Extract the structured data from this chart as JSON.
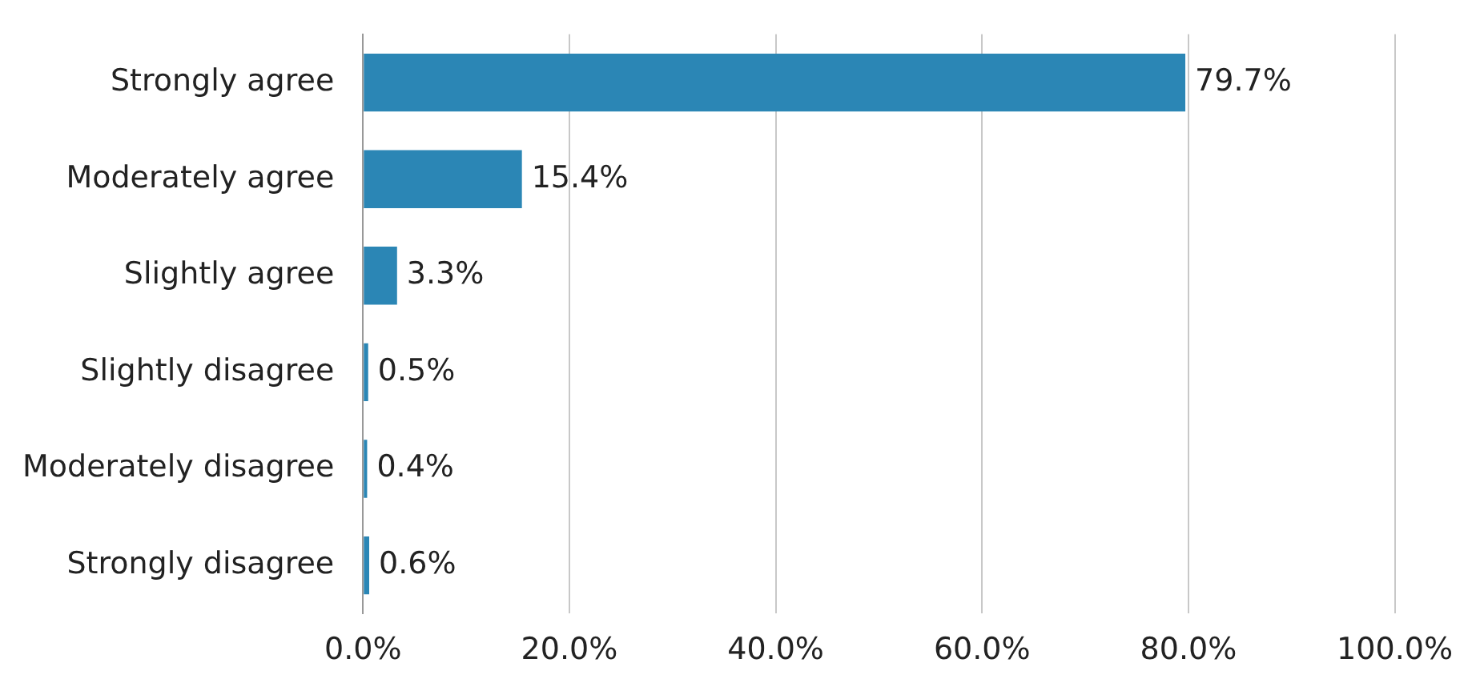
{
  "chart_data": {
    "type": "bar",
    "orientation": "horizontal",
    "categories": [
      "Strongly agree",
      "Moderately agree",
      "Slightly agree",
      "Slightly disagree",
      "Moderately disagree",
      "Strongly disagree"
    ],
    "values": [
      79.7,
      15.4,
      3.3,
      0.5,
      0.4,
      0.6
    ],
    "value_labels": [
      "79.7%",
      "15.4%",
      "3.3%",
      "0.5%",
      "0.4%",
      "0.6%"
    ],
    "color": "#2b86b5",
    "xlim": [
      0,
      100
    ],
    "xticks": [
      {
        "value": 0,
        "label": "0.0%"
      },
      {
        "value": 20,
        "label": "20.0%"
      },
      {
        "value": 40,
        "label": "40.0%"
      },
      {
        "value": 60,
        "label": "60.0%"
      },
      {
        "value": 80,
        "label": "80.0%"
      },
      {
        "value": 100,
        "label": "100.0%"
      }
    ],
    "grid": "x"
  }
}
